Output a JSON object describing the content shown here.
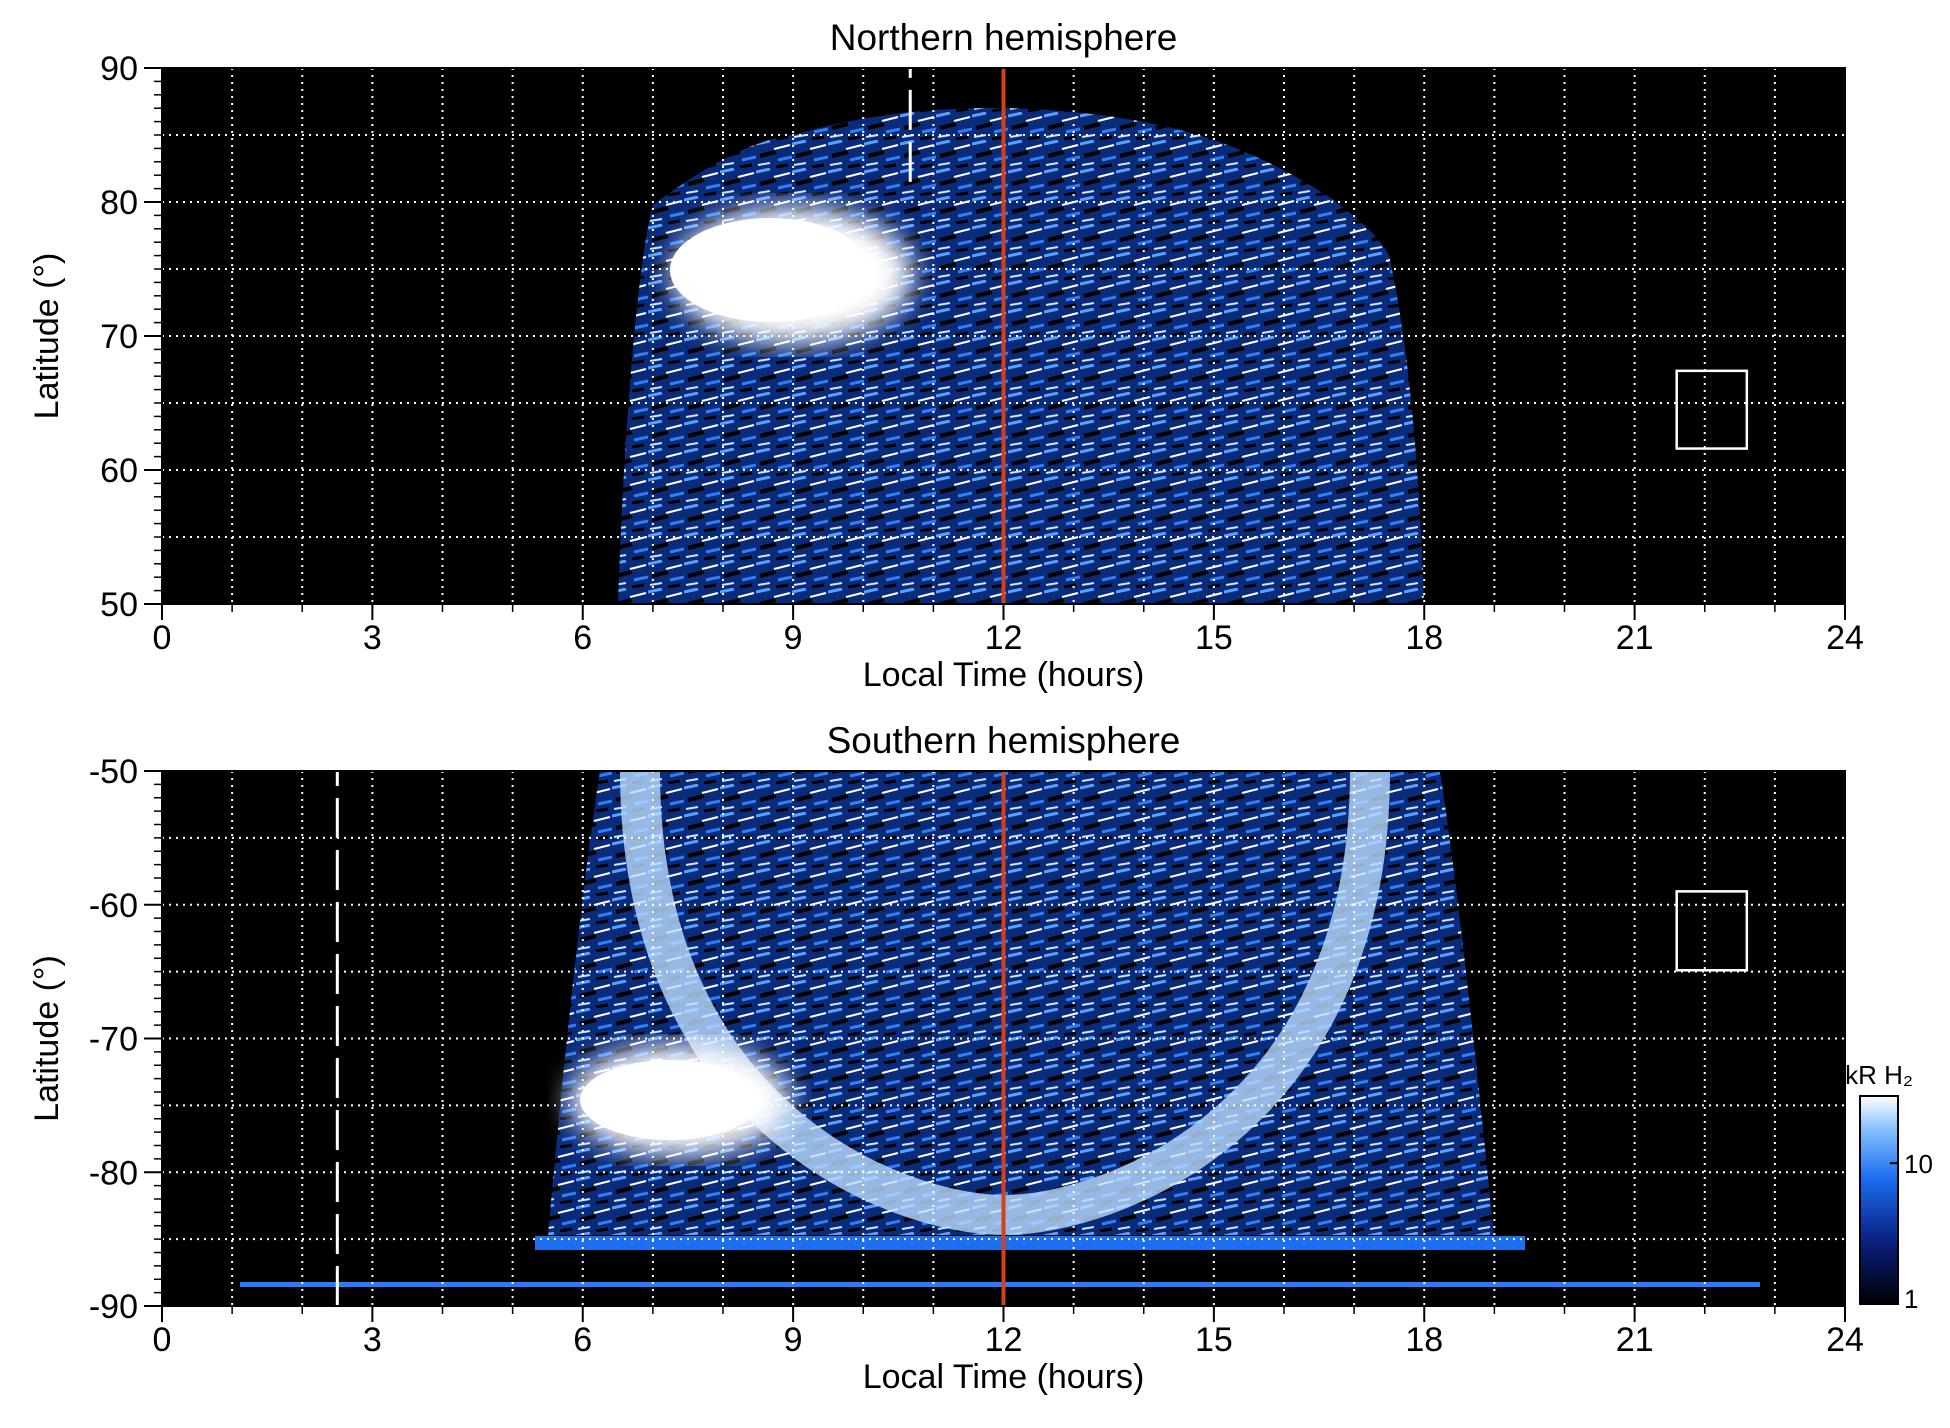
{
  "chart_data": [
    {
      "type": "heatmap",
      "title": "Northern hemisphere",
      "xlabel": "Local Time (hours)",
      "ylabel": "Latitude (°)",
      "xlim": [
        0,
        24
      ],
      "xticks": [
        0,
        3,
        6,
        9,
        12,
        15,
        18,
        21,
        24
      ],
      "ylim": [
        50,
        90
      ],
      "yticks": [
        50,
        60,
        70,
        80,
        90
      ],
      "grid_xstep": 1,
      "grid_ystep": 5,
      "grid": true,
      "vlines": [
        {
          "x": 12,
          "color": "#d2401c",
          "style": "solid"
        },
        {
          "x": 10.67,
          "color": "#ffffff",
          "style": "dashed",
          "y": [
            81.5,
            90
          ]
        }
      ],
      "box": {
        "x": [
          21.6,
          22.6
        ],
        "y": [
          61.6,
          67.4
        ]
      }
    },
    {
      "type": "heatmap",
      "title": "Southern hemisphere",
      "xlabel": "Local Time (hours)",
      "ylabel": "Latitude (°)",
      "xlim": [
        0,
        24
      ],
      "xticks": [
        0,
        3,
        6,
        9,
        12,
        15,
        18,
        21,
        24
      ],
      "ylim": [
        -90,
        -50
      ],
      "yticks": [
        -90,
        -80,
        -70,
        -60,
        -50
      ],
      "grid_xstep": 1,
      "grid_ystep": 5,
      "grid": true,
      "vlines": [
        {
          "x": 12,
          "color": "#d2401c",
          "style": "solid"
        },
        {
          "x": 2.5,
          "color": "#ffffff",
          "style": "dashed",
          "y": [
            -90,
            -50
          ]
        }
      ],
      "box": {
        "x": [
          21.6,
          22.6
        ],
        "y": [
          -64.9,
          -59
        ]
      },
      "colorbar": {
        "label": "kR H₂",
        "scale": "log",
        "lim": [
          1,
          30
        ],
        "ticks": [
          1,
          10
        ]
      }
    }
  ]
}
